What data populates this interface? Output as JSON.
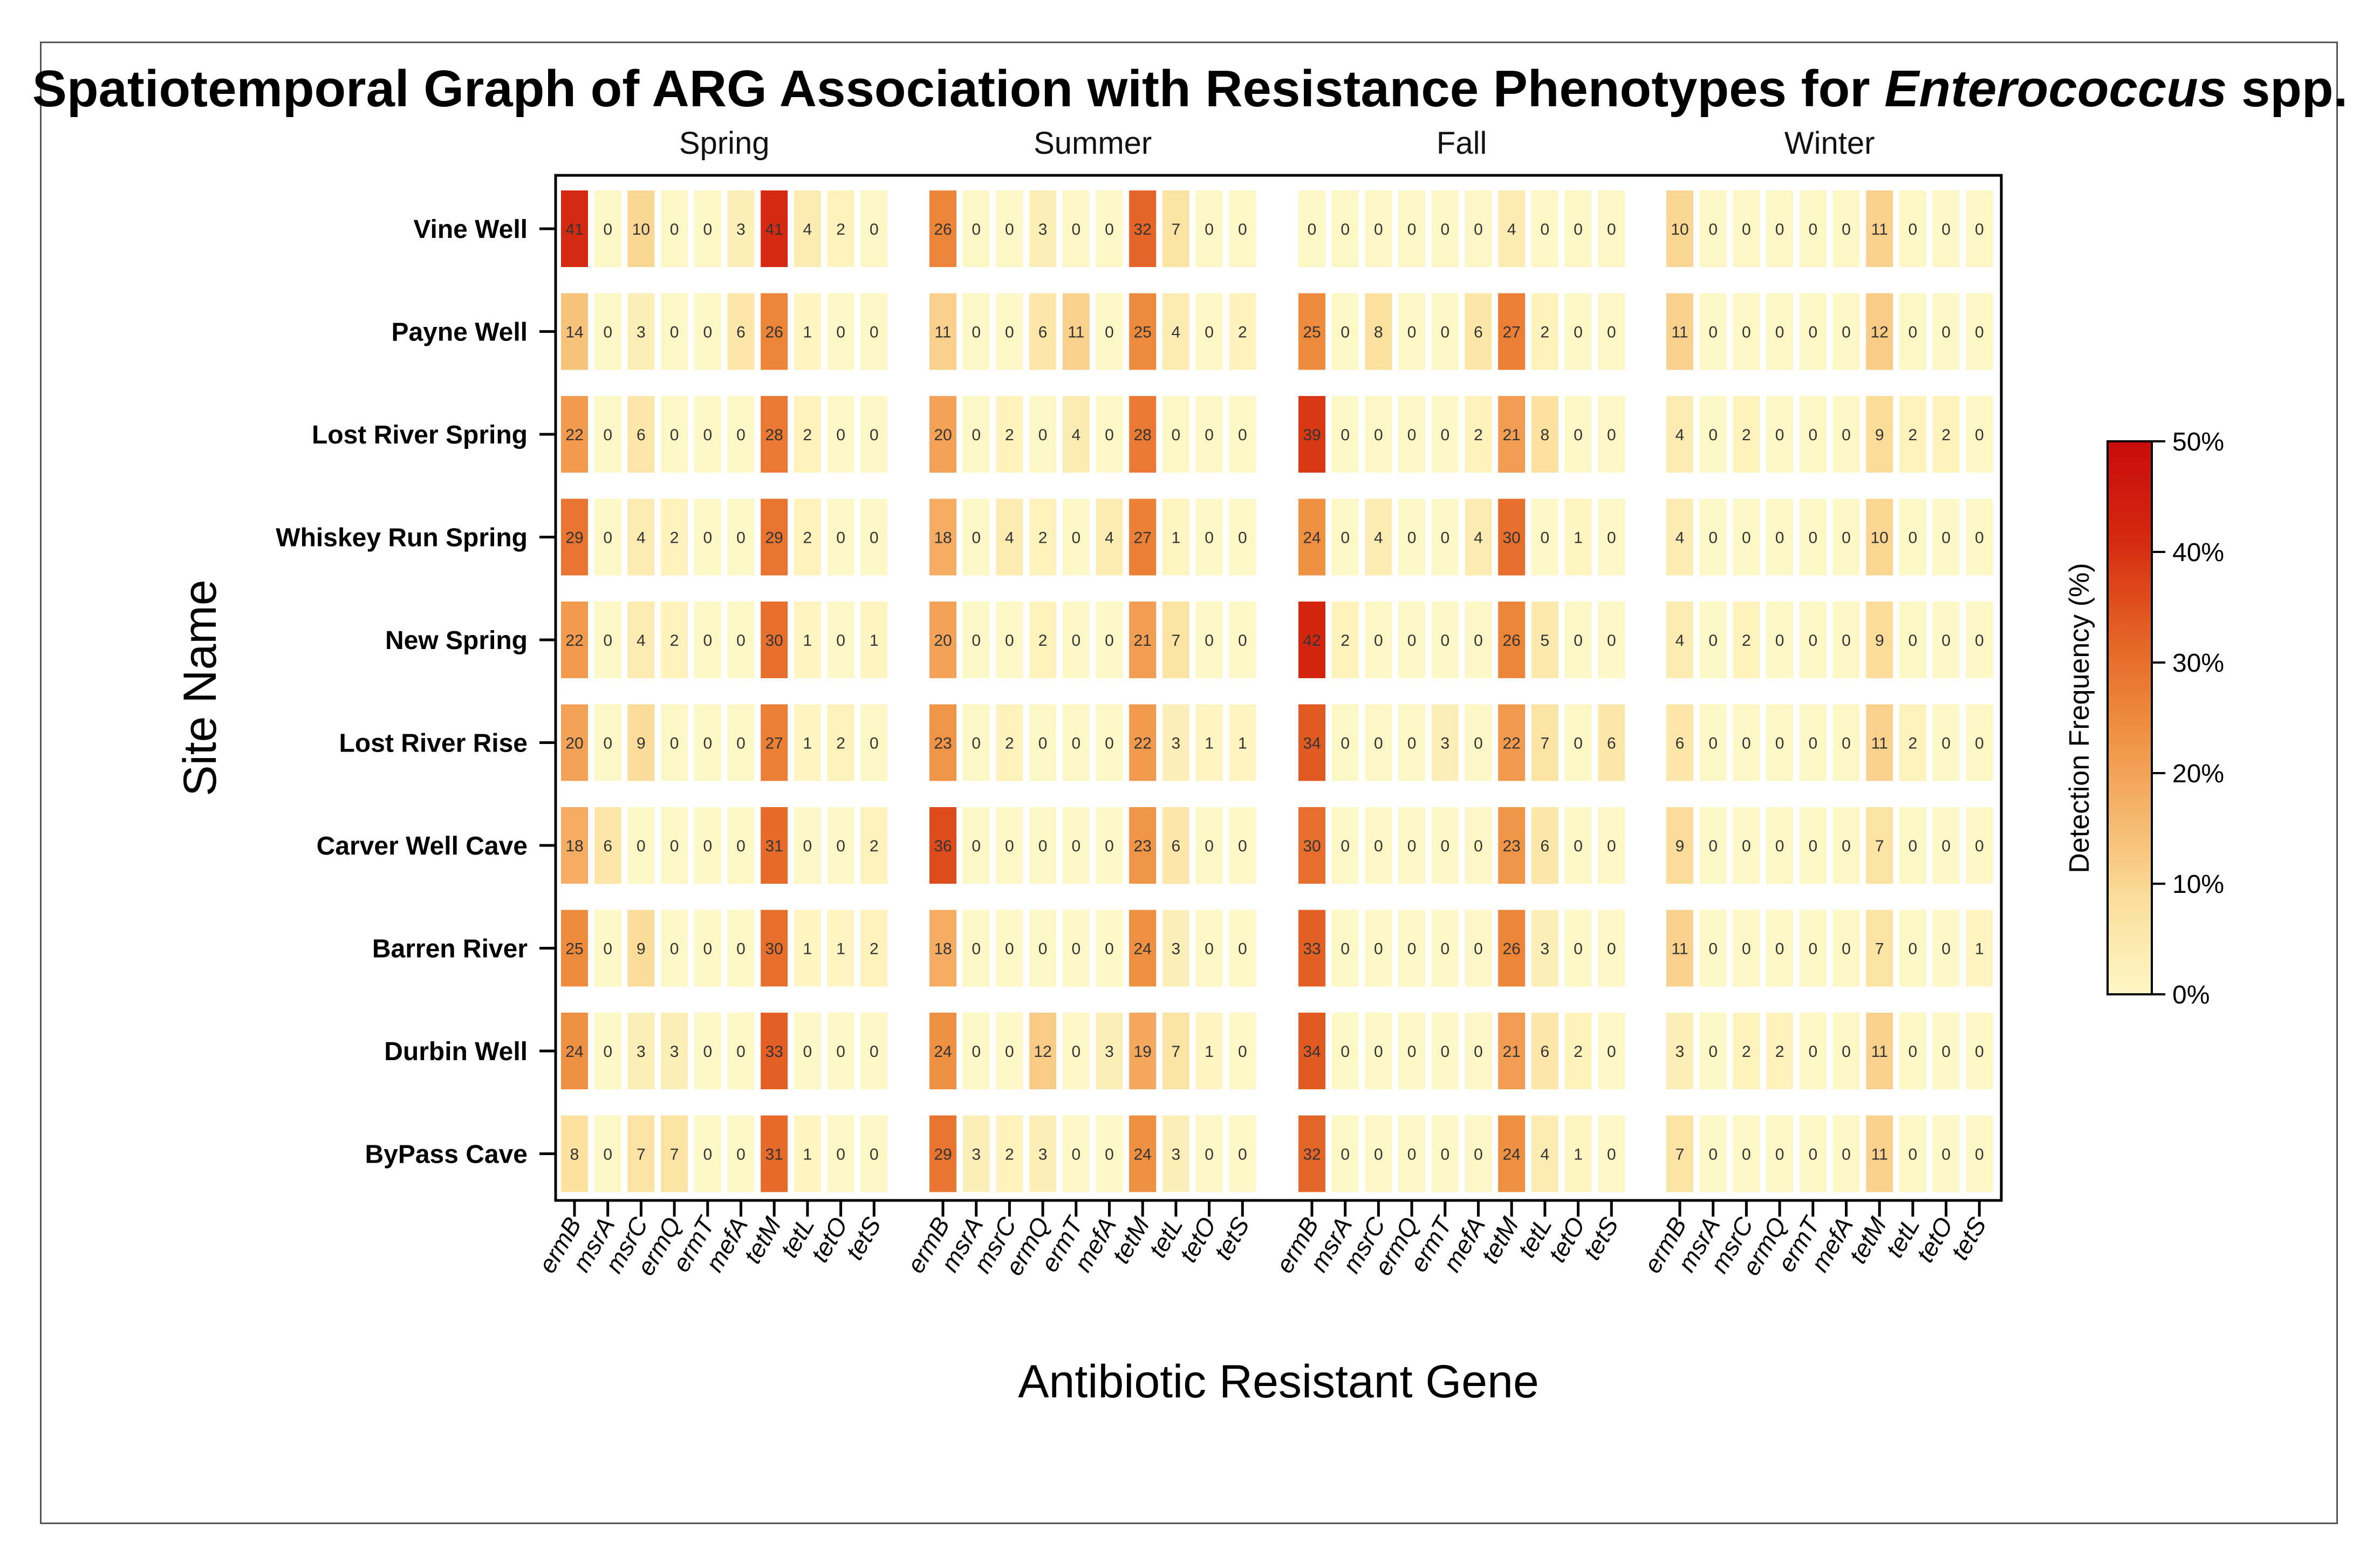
{
  "chart_data": {
    "type": "heatmap",
    "title_prefix": "Spatiotemporal Graph of ARG Association with Resistance Phenotypes for ",
    "title_italic": "Enterococcus",
    "title_suffix": " spp.",
    "xlabel": "Antibiotic Resistant Gene",
    "ylabel": "Site Name",
    "seasons": [
      "Spring",
      "Summer",
      "Fall",
      "Winter"
    ],
    "genes": [
      "ermB",
      "msrA",
      "msrC",
      "ermQ",
      "ermT",
      "mefA",
      "tetM",
      "tetL",
      "tetO",
      "tetS"
    ],
    "sites": [
      "Vine Well",
      "Payne Well",
      "Lost River Spring",
      "Whiskey Run Spring",
      "New Spring",
      "Lost River Rise",
      "Carver Well Cave",
      "Barren River",
      "Durbin Well",
      "ByPass Cave"
    ],
    "values": {
      "Spring": [
        [
          41,
          0,
          10,
          0,
          0,
          3,
          41,
          4,
          2,
          0
        ],
        [
          14,
          0,
          3,
          0,
          0,
          6,
          26,
          1,
          0,
          0
        ],
        [
          22,
          0,
          6,
          0,
          0,
          0,
          28,
          2,
          0,
          0
        ],
        [
          29,
          0,
          4,
          2,
          0,
          0,
          29,
          2,
          0,
          0
        ],
        [
          22,
          0,
          4,
          2,
          0,
          0,
          30,
          1,
          0,
          1
        ],
        [
          20,
          0,
          9,
          0,
          0,
          0,
          27,
          1,
          2,
          0
        ],
        [
          18,
          6,
          0,
          0,
          0,
          0,
          31,
          0,
          0,
          2
        ],
        [
          25,
          0,
          9,
          0,
          0,
          0,
          30,
          1,
          1,
          2
        ],
        [
          24,
          0,
          3,
          3,
          0,
          0,
          33,
          0,
          0,
          0
        ],
        [
          8,
          0,
          7,
          7,
          0,
          0,
          31,
          1,
          0,
          0
        ]
      ],
      "Summer": [
        [
          26,
          0,
          0,
          3,
          0,
          0,
          32,
          7,
          0,
          0
        ],
        [
          11,
          0,
          0,
          6,
          11,
          0,
          25,
          4,
          0,
          2
        ],
        [
          20,
          0,
          2,
          0,
          4,
          0,
          28,
          0,
          0,
          0
        ],
        [
          18,
          0,
          4,
          2,
          0,
          4,
          27,
          1,
          0,
          0
        ],
        [
          20,
          0,
          0,
          2,
          0,
          0,
          21,
          7,
          0,
          0
        ],
        [
          23,
          0,
          2,
          0,
          0,
          0,
          22,
          3,
          1,
          1
        ],
        [
          36,
          0,
          0,
          0,
          0,
          0,
          23,
          6,
          0,
          0
        ],
        [
          18,
          0,
          0,
          0,
          0,
          0,
          24,
          3,
          0,
          0
        ],
        [
          24,
          0,
          0,
          12,
          0,
          3,
          19,
          7,
          1,
          0
        ],
        [
          29,
          3,
          2,
          3,
          0,
          0,
          24,
          3,
          0,
          0
        ]
      ],
      "Fall": [
        [
          0,
          0,
          0,
          0,
          0,
          0,
          4,
          0,
          0,
          0
        ],
        [
          25,
          0,
          8,
          0,
          0,
          6,
          27,
          2,
          0,
          0
        ],
        [
          39,
          0,
          0,
          0,
          0,
          2,
          21,
          8,
          0,
          0
        ],
        [
          24,
          0,
          4,
          0,
          0,
          4,
          30,
          0,
          1,
          0
        ],
        [
          42,
          2,
          0,
          0,
          0,
          0,
          26,
          5,
          0,
          0
        ],
        [
          34,
          0,
          0,
          0,
          3,
          0,
          22,
          7,
          0,
          6
        ],
        [
          30,
          0,
          0,
          0,
          0,
          0,
          23,
          6,
          0,
          0
        ],
        [
          33,
          0,
          0,
          0,
          0,
          0,
          26,
          3,
          0,
          0
        ],
        [
          34,
          0,
          0,
          0,
          0,
          0,
          21,
          6,
          2,
          0
        ],
        [
          32,
          0,
          0,
          0,
          0,
          0,
          24,
          4,
          1,
          0
        ]
      ],
      "Winter": [
        [
          10,
          0,
          0,
          0,
          0,
          0,
          11,
          0,
          0,
          0
        ],
        [
          11,
          0,
          0,
          0,
          0,
          0,
          12,
          0,
          0,
          0
        ],
        [
          4,
          0,
          2,
          0,
          0,
          0,
          9,
          2,
          2,
          0
        ],
        [
          4,
          0,
          0,
          0,
          0,
          0,
          10,
          0,
          0,
          0
        ],
        [
          4,
          0,
          2,
          0,
          0,
          0,
          9,
          0,
          0,
          0
        ],
        [
          6,
          0,
          0,
          0,
          0,
          0,
          11,
          2,
          0,
          0
        ],
        [
          9,
          0,
          0,
          0,
          0,
          0,
          7,
          0,
          0,
          0
        ],
        [
          11,
          0,
          0,
          0,
          0,
          0,
          7,
          0,
          0,
          1
        ],
        [
          3,
          0,
          2,
          2,
          0,
          0,
          11,
          0,
          0,
          0
        ],
        [
          7,
          0,
          0,
          0,
          0,
          0,
          11,
          0,
          0,
          0
        ]
      ]
    },
    "colorbar": {
      "label": "Detection Frequency (%)",
      "range": [
        0,
        50
      ],
      "ticks": [
        "0%",
        "10%",
        "20%",
        "30%",
        "40%",
        "50%"
      ],
      "colors": [
        "#fdf7c6",
        "#fbdf9c",
        "#f5b46a",
        "#ee8a3c",
        "#e35d23",
        "#d4260f",
        "#c90c0c"
      ]
    }
  }
}
